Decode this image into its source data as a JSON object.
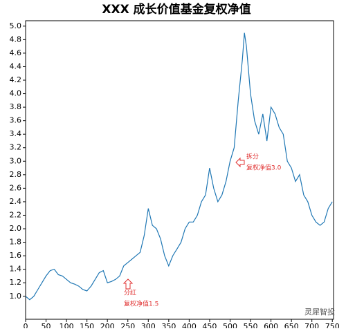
{
  "chart_data": {
    "type": "line",
    "title": "XXX 成长价值基金复权净值",
    "color": "#1f77b4",
    "x": [
      0,
      10,
      20,
      30,
      40,
      50,
      60,
      70,
      80,
      90,
      100,
      110,
      120,
      130,
      140,
      150,
      160,
      170,
      180,
      190,
      200,
      210,
      220,
      230,
      240,
      250,
      260,
      270,
      280,
      290,
      300,
      310,
      320,
      330,
      340,
      350,
      360,
      370,
      380,
      390,
      400,
      410,
      420,
      430,
      440,
      450,
      460,
      470,
      480,
      490,
      500,
      510,
      520,
      530,
      535,
      540,
      550,
      560,
      570,
      580,
      590,
      600,
      610,
      620,
      630,
      640,
      650,
      660,
      670,
      680,
      690,
      700,
      710,
      720,
      730,
      740,
      750
    ],
    "values": [
      1.0,
      0.95,
      1.0,
      1.1,
      1.2,
      1.3,
      1.38,
      1.4,
      1.32,
      1.3,
      1.25,
      1.2,
      1.18,
      1.15,
      1.1,
      1.08,
      1.15,
      1.25,
      1.35,
      1.38,
      1.2,
      1.22,
      1.25,
      1.3,
      1.45,
      1.5,
      1.55,
      1.6,
      1.65,
      1.9,
      2.3,
      2.05,
      2.0,
      1.85,
      1.6,
      1.45,
      1.6,
      1.7,
      1.8,
      2.0,
      2.1,
      2.1,
      2.2,
      2.4,
      2.5,
      2.9,
      2.6,
      2.4,
      2.5,
      2.7,
      3.0,
      3.2,
      3.9,
      4.5,
      4.9,
      4.7,
      4.0,
      3.6,
      3.4,
      3.7,
      3.3,
      3.8,
      3.7,
      3.5,
      3.4,
      3.0,
      2.9,
      2.7,
      2.8,
      2.5,
      2.4,
      2.2,
      2.1,
      2.05,
      2.1,
      2.3,
      2.4
    ],
    "xlim": [
      0,
      753
    ],
    "ylim": [
      0.66,
      5.08
    ],
    "xticks": [
      0,
      50,
      100,
      150,
      200,
      250,
      300,
      350,
      400,
      450,
      500,
      550,
      600,
      650,
      700,
      750
    ],
    "yticks": [
      {
        "value": 1.0,
        "label": "1.0"
      },
      1.2,
      1.4,
      1.6,
      1.8,
      {
        "value": 2.0,
        "label": "2.0"
      },
      2.2,
      2.4,
      2.6,
      2.8,
      {
        "value": 3.0,
        "label": "3.0"
      },
      3.2,
      3.4,
      3.6,
      3.8,
      {
        "value": 4.0,
        "label": "4.0"
      },
      4.2,
      4.4,
      4.6,
      4.8,
      {
        "value": 5.0,
        "label": "5.0"
      }
    ],
    "annotations": [
      "拆分",
      "复权净值3.0",
      "分红",
      "复权净值1.5"
    ],
    "watermark": "灵犀智投"
  }
}
